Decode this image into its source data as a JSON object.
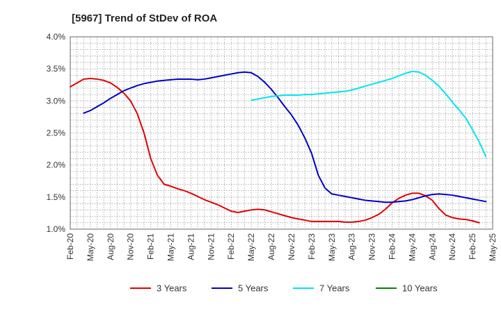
{
  "chart_data": {
    "type": "line",
    "title": "[5967]  Trend of StDev of ROA",
    "xlabel": "",
    "ylabel": "",
    "ylim": [
      1.0,
      4.0
    ],
    "y_ticks": [
      "1.0%",
      "1.5%",
      "2.0%",
      "2.5%",
      "3.0%",
      "3.5%",
      "4.0%"
    ],
    "x_ticks": [
      "Feb-20",
      "May-20",
      "Aug-20",
      "Nov-20",
      "Feb-21",
      "May-21",
      "Aug-21",
      "Nov-21",
      "Feb-22",
      "May-22",
      "Aug-22",
      "Nov-22",
      "Feb-23",
      "May-23",
      "Aug-23",
      "Nov-23",
      "Feb-24",
      "May-24",
      "Aug-24",
      "Nov-24",
      "Feb-25",
      "May-25"
    ],
    "grid": true,
    "legend_position": "bottom",
    "series": [
      {
        "name": "3 Years",
        "color": "#e00000",
        "points": [
          [
            "Feb-20",
            3.22
          ],
          [
            "Mar-20",
            3.28
          ],
          [
            "Apr-20",
            3.34
          ],
          [
            "May-20",
            3.35
          ],
          [
            "Jun-20",
            3.34
          ],
          [
            "Jul-20",
            3.32
          ],
          [
            "Aug-20",
            3.28
          ],
          [
            "Sep-20",
            3.21
          ],
          [
            "Oct-20",
            3.12
          ],
          [
            "Nov-20",
            3.0
          ],
          [
            "Dec-20",
            2.8
          ],
          [
            "Jan-21",
            2.5
          ],
          [
            "Feb-21",
            2.1
          ],
          [
            "Mar-21",
            1.84
          ],
          [
            "Apr-21",
            1.7
          ],
          [
            "May-21",
            1.67
          ],
          [
            "Jun-21",
            1.63
          ],
          [
            "Jul-21",
            1.6
          ],
          [
            "Aug-21",
            1.56
          ],
          [
            "Sep-21",
            1.51
          ],
          [
            "Oct-21",
            1.46
          ],
          [
            "Nov-21",
            1.42
          ],
          [
            "Dec-21",
            1.38
          ],
          [
            "Jan-22",
            1.33
          ],
          [
            "Feb-22",
            1.28
          ],
          [
            "Mar-22",
            1.26
          ],
          [
            "Apr-22",
            1.28
          ],
          [
            "May-22",
            1.3
          ],
          [
            "Jun-22",
            1.31
          ],
          [
            "Jul-22",
            1.3
          ],
          [
            "Aug-22",
            1.27
          ],
          [
            "Sep-22",
            1.24
          ],
          [
            "Oct-22",
            1.21
          ],
          [
            "Nov-22",
            1.18
          ],
          [
            "Dec-22",
            1.16
          ],
          [
            "Jan-23",
            1.14
          ],
          [
            "Feb-23",
            1.12
          ],
          [
            "Mar-23",
            1.12
          ],
          [
            "Apr-23",
            1.12
          ],
          [
            "May-23",
            1.12
          ],
          [
            "Jun-23",
            1.12
          ],
          [
            "Jul-23",
            1.11
          ],
          [
            "Aug-23",
            1.11
          ],
          [
            "Sep-23",
            1.12
          ],
          [
            "Oct-23",
            1.14
          ],
          [
            "Nov-23",
            1.18
          ],
          [
            "Dec-23",
            1.23
          ],
          [
            "Jan-24",
            1.31
          ],
          [
            "Feb-24",
            1.41
          ],
          [
            "Mar-24",
            1.48
          ],
          [
            "Apr-24",
            1.53
          ],
          [
            "May-24",
            1.56
          ],
          [
            "Jun-24",
            1.56
          ],
          [
            "Jul-24",
            1.52
          ],
          [
            "Aug-24",
            1.45
          ],
          [
            "Sep-24",
            1.32
          ],
          [
            "Oct-24",
            1.22
          ],
          [
            "Nov-24",
            1.18
          ],
          [
            "Dec-24",
            1.16
          ],
          [
            "Jan-25",
            1.15
          ],
          [
            "Feb-25",
            1.13
          ],
          [
            "Mar-25",
            1.1
          ]
        ]
      },
      {
        "name": "5 Years",
        "color": "#0000c8",
        "points": [
          [
            "Apr-20",
            2.81
          ],
          [
            "May-20",
            2.85
          ],
          [
            "Jun-20",
            2.91
          ],
          [
            "Jul-20",
            2.97
          ],
          [
            "Aug-20",
            3.04
          ],
          [
            "Sep-20",
            3.1
          ],
          [
            "Oct-20",
            3.16
          ],
          [
            "Nov-20",
            3.2
          ],
          [
            "Dec-20",
            3.24
          ],
          [
            "Jan-21",
            3.27
          ],
          [
            "Feb-21",
            3.29
          ],
          [
            "Mar-21",
            3.31
          ],
          [
            "Apr-21",
            3.32
          ],
          [
            "May-21",
            3.33
          ],
          [
            "Jun-21",
            3.34
          ],
          [
            "Jul-21",
            3.34
          ],
          [
            "Aug-21",
            3.34
          ],
          [
            "Sep-21",
            3.33
          ],
          [
            "Oct-21",
            3.34
          ],
          [
            "Nov-21",
            3.36
          ],
          [
            "Dec-21",
            3.38
          ],
          [
            "Jan-22",
            3.4
          ],
          [
            "Feb-22",
            3.42
          ],
          [
            "Mar-22",
            3.44
          ],
          [
            "Apr-22",
            3.45
          ],
          [
            "May-22",
            3.44
          ],
          [
            "Jun-22",
            3.38
          ],
          [
            "Jul-22",
            3.29
          ],
          [
            "Aug-22",
            3.18
          ],
          [
            "Sep-22",
            3.05
          ],
          [
            "Oct-22",
            2.91
          ],
          [
            "Nov-22",
            2.78
          ],
          [
            "Dec-22",
            2.62
          ],
          [
            "Jan-23",
            2.42
          ],
          [
            "Feb-23",
            2.18
          ],
          [
            "Mar-23",
            1.84
          ],
          [
            "Apr-23",
            1.64
          ],
          [
            "May-23",
            1.55
          ],
          [
            "Jun-23",
            1.53
          ],
          [
            "Jul-23",
            1.51
          ],
          [
            "Aug-23",
            1.49
          ],
          [
            "Sep-23",
            1.47
          ],
          [
            "Oct-23",
            1.45
          ],
          [
            "Nov-23",
            1.44
          ],
          [
            "Dec-23",
            1.43
          ],
          [
            "Jan-24",
            1.42
          ],
          [
            "Feb-24",
            1.42
          ],
          [
            "Mar-24",
            1.43
          ],
          [
            "Apr-24",
            1.44
          ],
          [
            "May-24",
            1.46
          ],
          [
            "Jun-24",
            1.49
          ],
          [
            "Jul-24",
            1.52
          ],
          [
            "Aug-24",
            1.54
          ],
          [
            "Sep-24",
            1.55
          ],
          [
            "Oct-24",
            1.54
          ],
          [
            "Nov-24",
            1.53
          ],
          [
            "Dec-24",
            1.51
          ],
          [
            "Jan-25",
            1.49
          ],
          [
            "Feb-25",
            1.47
          ],
          [
            "Mar-25",
            1.45
          ],
          [
            "Apr-25",
            1.43
          ]
        ]
      },
      {
        "name": "7 Years",
        "color": "#00e5ee",
        "points": [
          [
            "May-22",
            3.01
          ],
          [
            "Jun-22",
            3.03
          ],
          [
            "Jul-22",
            3.05
          ],
          [
            "Aug-22",
            3.07
          ],
          [
            "Sep-22",
            3.08
          ],
          [
            "Oct-22",
            3.09
          ],
          [
            "Nov-22",
            3.09
          ],
          [
            "Dec-22",
            3.09
          ],
          [
            "Jan-23",
            3.1
          ],
          [
            "Feb-23",
            3.1
          ],
          [
            "Mar-23",
            3.11
          ],
          [
            "Apr-23",
            3.12
          ],
          [
            "May-23",
            3.13
          ],
          [
            "Jun-23",
            3.14
          ],
          [
            "Jul-23",
            3.15
          ],
          [
            "Aug-23",
            3.17
          ],
          [
            "Sep-23",
            3.2
          ],
          [
            "Oct-23",
            3.23
          ],
          [
            "Nov-23",
            3.26
          ],
          [
            "Dec-23",
            3.29
          ],
          [
            "Jan-24",
            3.32
          ],
          [
            "Feb-24",
            3.35
          ],
          [
            "Mar-24",
            3.39
          ],
          [
            "Apr-24",
            3.43
          ],
          [
            "May-24",
            3.46
          ],
          [
            "Jun-24",
            3.45
          ],
          [
            "Jul-24",
            3.4
          ],
          [
            "Aug-24",
            3.32
          ],
          [
            "Sep-24",
            3.23
          ],
          [
            "Oct-24",
            3.11
          ],
          [
            "Nov-24",
            2.98
          ],
          [
            "Dec-24",
            2.86
          ],
          [
            "Jan-25",
            2.73
          ],
          [
            "Feb-25",
            2.55
          ],
          [
            "Mar-25",
            2.36
          ],
          [
            "Apr-25",
            2.13
          ]
        ]
      },
      {
        "name": "10 Years",
        "color": "#008000",
        "points": []
      }
    ]
  }
}
